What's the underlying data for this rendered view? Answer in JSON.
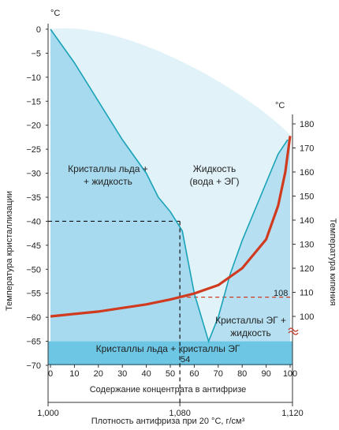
{
  "chart_data": {
    "type": "line",
    "title": "",
    "left_axis": {
      "unit": "°C",
      "label": "Температура кристаллизации",
      "range": [
        -70,
        0
      ],
      "ticks": [
        0,
        -5,
        -10,
        -15,
        -20,
        -25,
        -30,
        -35,
        -40,
        -45,
        -50,
        -55,
        -60,
        -65,
        -70
      ]
    },
    "right_axis": {
      "unit": "°C",
      "label": "Температура кипения",
      "range": [
        97,
        180
      ],
      "ticks": [
        180,
        170,
        160,
        150,
        140,
        130,
        120,
        110,
        100
      ]
    },
    "concentration_axis": {
      "label": "Содержание концентрата в антифризе",
      "range": [
        0,
        100
      ],
      "ticks": [
        "0",
        "10",
        "20",
        "30",
        "40",
        "50",
        "60",
        "70",
        "80",
        "90",
        "100"
      ]
    },
    "density_axis": {
      "label": "Плотность антифриза при 20 °C, г/см³",
      "ticks": [
        "1,000",
        "1,080",
        "1,120"
      ]
    },
    "regions": {
      "ice_liquid": [
        "Кристаллы льда +",
        "+ жидкость"
      ],
      "liquid": [
        "Жидкость",
        "(вода + ЭГ)"
      ],
      "eg_liquid": [
        "Кристаллы ЭГ +",
        "жидкость"
      ],
      "bottom": "Кристаллы льда + кристаллы ЭГ"
    },
    "series": [
      {
        "role": "crystallization",
        "color": "#1aa3b8",
        "points": [
          [
            0,
            0
          ],
          [
            10,
            -7
          ],
          [
            20,
            -15
          ],
          [
            30,
            -23
          ],
          [
            40,
            -30
          ],
          [
            45,
            -35
          ],
          [
            50,
            -38
          ],
          [
            55,
            -42
          ],
          [
            60,
            -55
          ],
          [
            66,
            -65
          ],
          [
            70,
            -60
          ],
          [
            75,
            -51
          ],
          [
            80,
            -44
          ],
          [
            85,
            -38
          ],
          [
            90,
            -32
          ],
          [
            95,
            -26
          ],
          [
            99,
            -23
          ]
        ]
      },
      {
        "role": "boiling",
        "color": "#d03a1f",
        "points": [
          [
            0,
            100
          ],
          [
            10,
            101
          ],
          [
            20,
            102
          ],
          [
            30,
            103.5
          ],
          [
            40,
            105
          ],
          [
            50,
            107
          ],
          [
            54,
            108
          ],
          [
            60,
            109.5
          ],
          [
            70,
            113
          ],
          [
            80,
            120
          ],
          [
            90,
            132
          ],
          [
            95,
            146
          ],
          [
            98,
            160
          ],
          [
            100,
            175
          ]
        ]
      }
    ],
    "guides": {
      "concentration": 54,
      "concentration_label": "54",
      "crystallization": -40,
      "density": "1,080",
      "boiling": 108,
      "boiling_label": "108"
    },
    "colors": {
      "light_region": "#e1f2f9",
      "ice_region": "#a7daee",
      "eutectic_band": "#6cc6e4",
      "crystal_line": "#1aa3b8",
      "boiling_line": "#d03a1f"
    }
  }
}
